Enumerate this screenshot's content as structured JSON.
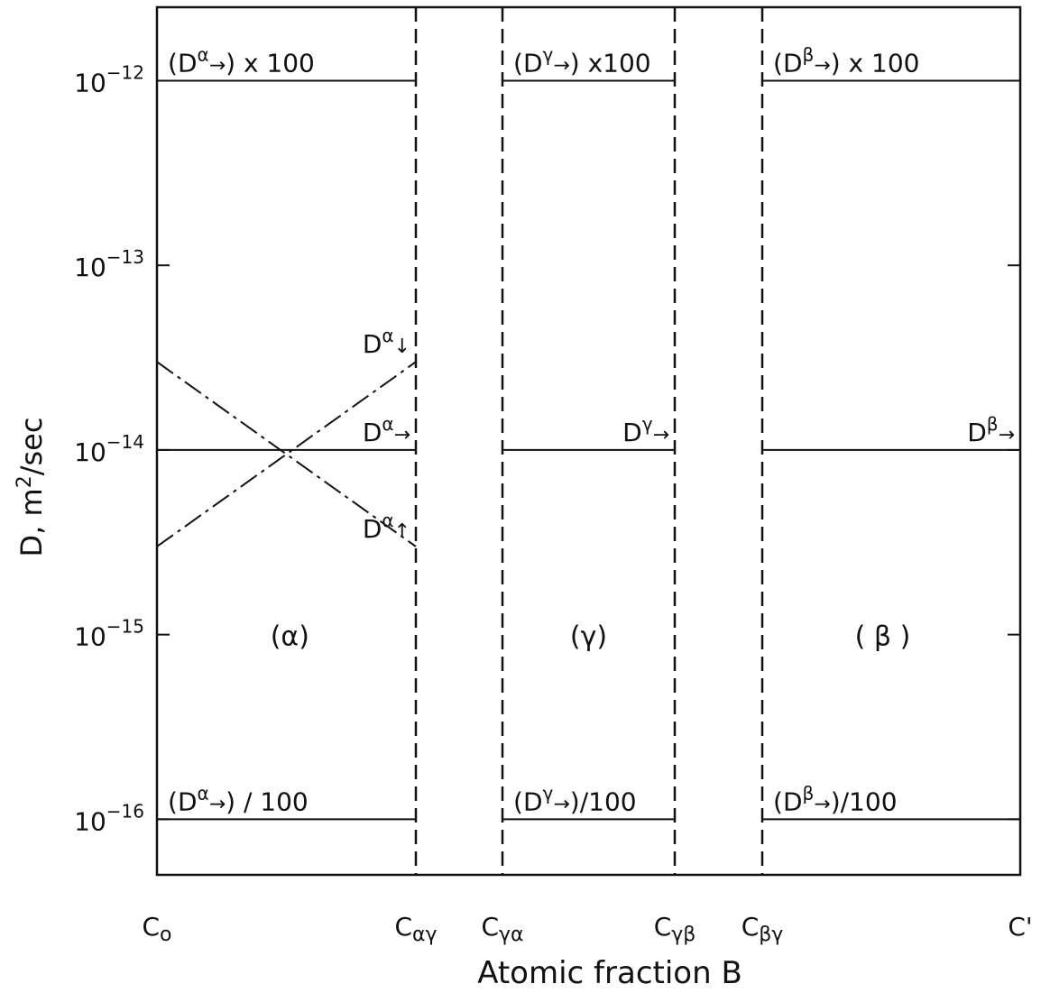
{
  "chart_data": {
    "type": "line",
    "title": "",
    "xlabel": "Atomic fraction B",
    "ylabel": "D, m2/sec",
    "y_scale": "log",
    "ylim": [
      5e-17,
      2.5e-12
    ],
    "y_ticks": [
      {
        "value": 1e-12,
        "label": "10-12"
      },
      {
        "value": 1e-13,
        "label": "10-13"
      },
      {
        "value": 1e-14,
        "label": "10-14"
      },
      {
        "value": 1e-15,
        "label": "10-15"
      },
      {
        "value": 1e-16,
        "label": "10-16"
      }
    ],
    "x_positions": [
      0,
      1.5,
      2,
      3,
      3.5,
      5
    ],
    "x_tick_labels": [
      "Co",
      "Cαγ",
      "Cγα",
      "Cγβ",
      "Cβγ",
      "C'"
    ],
    "phase_boundaries": [
      "Cαγ",
      "Cγα",
      "Cγβ",
      "Cβγ"
    ],
    "phase_labels": [
      {
        "label": "(α)",
        "x": 0.77,
        "y": 1e-15
      },
      {
        "label": "(γ)",
        "x": 2.5,
        "y": 1e-15
      },
      {
        "label": "( β )",
        "x": 4.2,
        "y": 1e-15
      }
    ],
    "series": [
      {
        "name": "(Dα→) x 100",
        "style": "solid",
        "x": [
          0,
          1.5
        ],
        "y": [
          1e-12,
          1e-12
        ]
      },
      {
        "name": "Dα→",
        "style": "solid",
        "x": [
          0,
          1.5
        ],
        "y": [
          1e-14,
          1e-14
        ]
      },
      {
        "name": "Dα↓",
        "style": "dashdot",
        "x": [
          0,
          1.5
        ],
        "y": [
          3e-15,
          3e-14
        ]
      },
      {
        "name": "Dα↑",
        "style": "dashdot",
        "x": [
          0,
          1.5
        ],
        "y": [
          3e-14,
          3e-15
        ]
      },
      {
        "name": "(Dα→) / 100",
        "style": "solid",
        "x": [
          0,
          1.5
        ],
        "y": [
          1e-16,
          1e-16
        ]
      },
      {
        "name": "(Dγ→) x100",
        "style": "solid",
        "x": [
          2,
          3
        ],
        "y": [
          1e-12,
          1e-12
        ]
      },
      {
        "name": "Dγ→",
        "style": "solid",
        "x": [
          2,
          3
        ],
        "y": [
          1e-14,
          1e-14
        ]
      },
      {
        "name": "(Dγ→)/100",
        "style": "solid",
        "x": [
          2,
          3
        ],
        "y": [
          1e-16,
          1e-16
        ]
      },
      {
        "name": "(Dβ→) x 100",
        "style": "solid",
        "x": [
          3.5,
          5
        ],
        "y": [
          1e-12,
          1e-12
        ]
      },
      {
        "name": "Dβ→",
        "style": "solid",
        "x": [
          3.5,
          5
        ],
        "y": [
          1e-14,
          1e-14
        ]
      },
      {
        "name": "(Dβ→)/100",
        "style": "solid",
        "x": [
          3.5,
          5
        ],
        "y": [
          1e-16,
          1e-16
        ]
      }
    ],
    "annotations": [
      {
        "text": "(Dα→)  x 100",
        "anchor": "above-left",
        "x": 0,
        "y": 1e-12
      },
      {
        "text": "(Dγ→) x100",
        "anchor": "above-left",
        "x": 2,
        "y": 1e-12
      },
      {
        "text": "(Dβ→)  x 100",
        "anchor": "above-left",
        "x": 3.5,
        "y": 1e-12
      },
      {
        "text": "Dα↓",
        "anchor": "above-right-end",
        "x": 1.5,
        "y": 3e-14
      },
      {
        "text": "Dα→",
        "anchor": "above-right-end",
        "x": 1.5,
        "y": 1e-14
      },
      {
        "text": "Dα↑",
        "anchor": "above-right-end",
        "x": 1.5,
        "y": 3e-15
      },
      {
        "text": "Dγ→",
        "anchor": "above-right-end",
        "x": 3,
        "y": 1e-14
      },
      {
        "text": "Dβ→",
        "anchor": "above-right-end",
        "x": 5,
        "y": 1e-14
      },
      {
        "text": "(Dα→) / 100",
        "anchor": "above-left",
        "x": 0,
        "y": 1e-16
      },
      {
        "text": "(Dγ→)/100",
        "anchor": "above-left",
        "x": 2,
        "y": 1e-16
      },
      {
        "text": "(Dβ→)/100",
        "anchor": "above-left",
        "x": 3.5,
        "y": 1e-16
      }
    ],
    "grid": false,
    "legend": "none"
  }
}
